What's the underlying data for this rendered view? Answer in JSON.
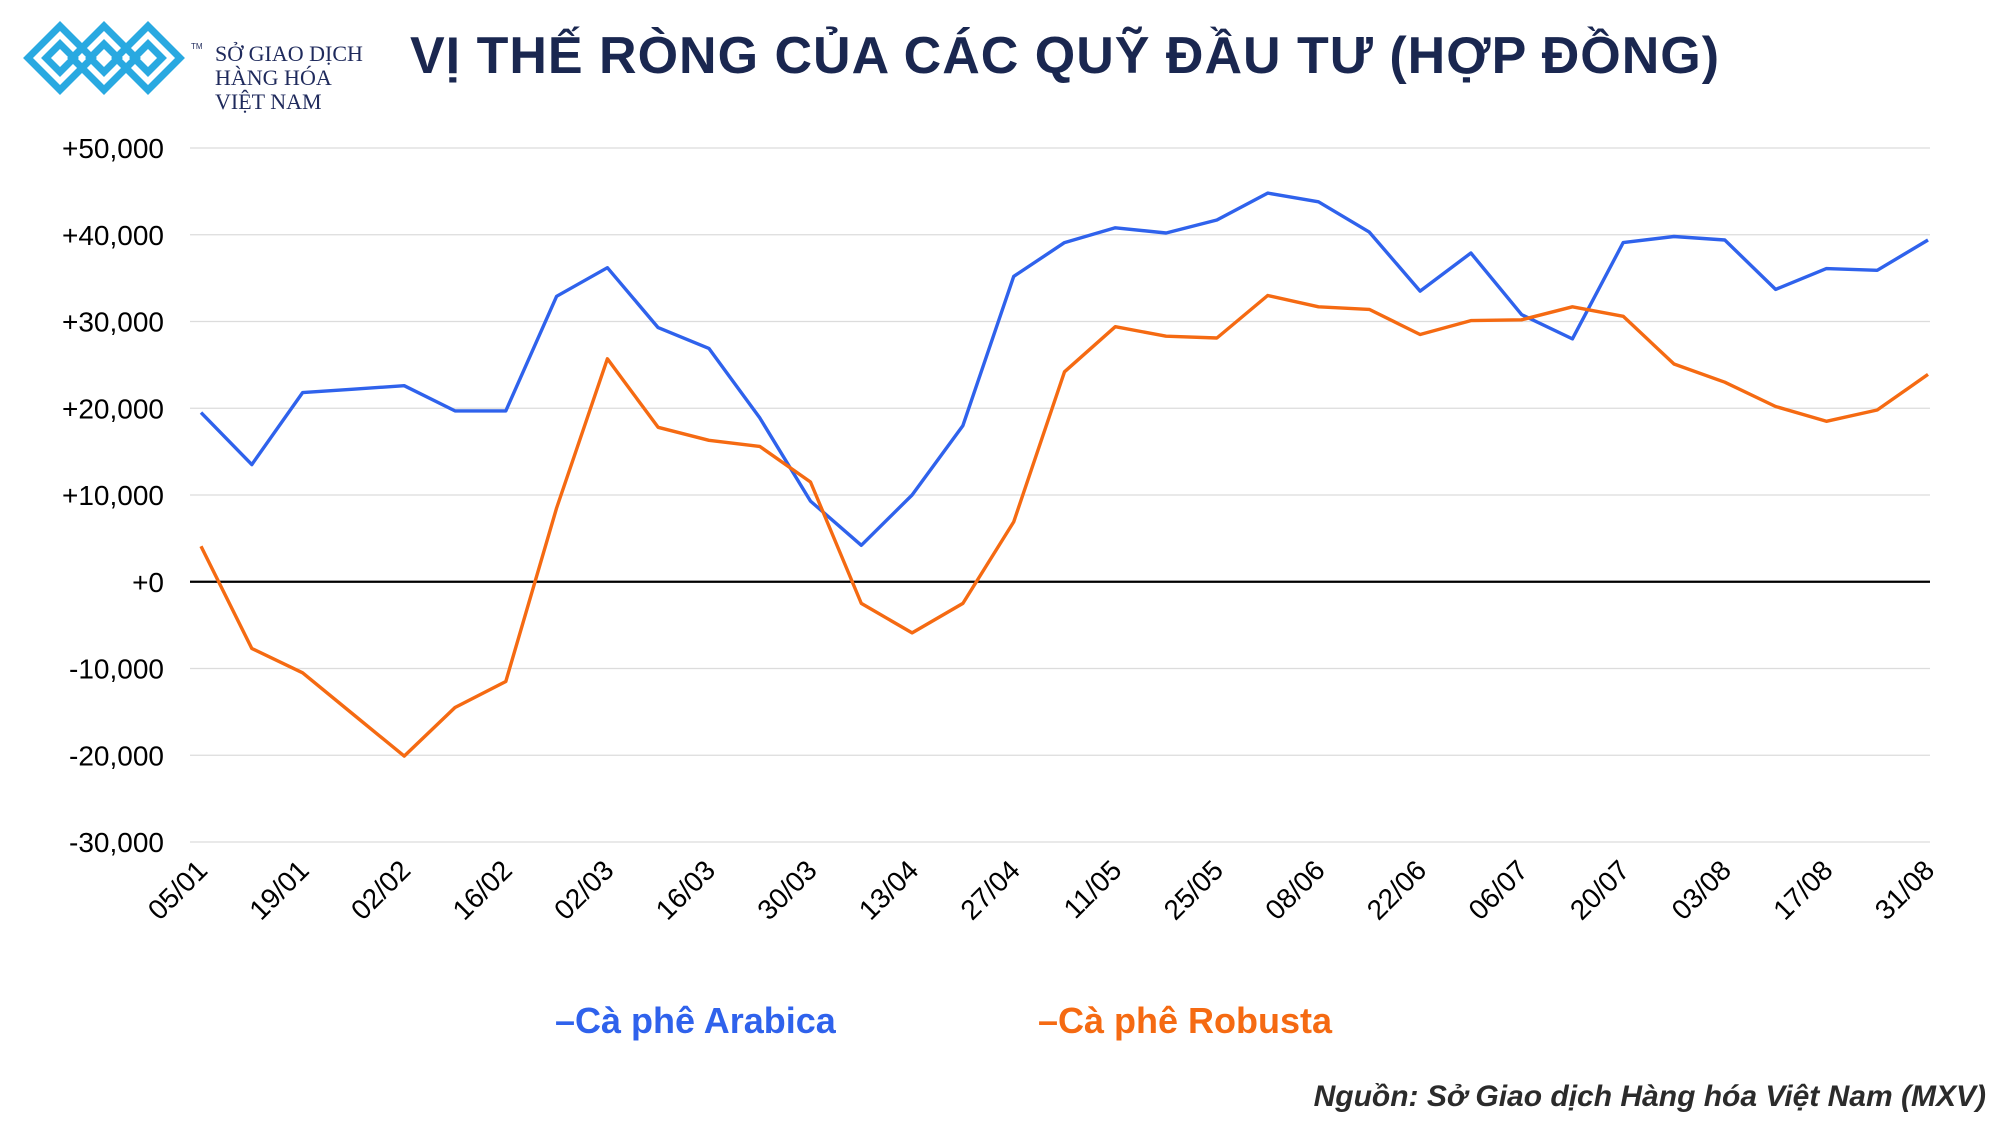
{
  "header": {
    "title": "VỊ THẾ RÒNG CỦA CÁC QUỸ ĐẦU TƯ (HỢP ĐỒNG)",
    "logo_lines": [
      "SỞ GIAO DỊCH",
      "HÀNG HÓA",
      "VIỆT NAM"
    ],
    "logo_tm": "TM"
  },
  "footer": {
    "source": "Nguồn: Sở Giao dịch Hàng hóa Việt Nam (MXV)"
  },
  "colors": {
    "arabica": "#2f62ec",
    "robusta": "#f56a12",
    "title": "#1a2750",
    "logo": "#29a9e1"
  },
  "chart_data": {
    "type": "line",
    "title": "VỊ THẾ RÒNG CỦA CÁC QUỸ ĐẦU TƯ (HỢP ĐỒNG)",
    "ylim": [
      -30000,
      50000
    ],
    "yticks": [
      50000,
      40000,
      30000,
      20000,
      10000,
      0,
      -10000,
      -20000,
      -30000
    ],
    "ytick_labels": [
      "+50,000",
      "+40,000",
      "+30,000",
      "+20,000",
      "+10,000",
      "+0",
      "-10,000",
      "-20,000",
      "-30,000"
    ],
    "x": [
      "05/01",
      "12/01",
      "19/01",
      "26/01",
      "02/02",
      "09/02",
      "16/02",
      "23/02",
      "02/03",
      "09/03",
      "16/03",
      "23/03",
      "30/03",
      "06/04",
      "13/04",
      "20/04",
      "27/04",
      "04/05",
      "11/05",
      "18/05",
      "25/05",
      "01/06",
      "08/06",
      "15/06",
      "22/06",
      "29/06",
      "06/07",
      "13/07",
      "20/07",
      "27/07",
      "03/08",
      "10/08",
      "17/08",
      "24/08",
      "31/08"
    ],
    "xtick_labels": [
      "05/01",
      "19/01",
      "02/02",
      "16/02",
      "02/03",
      "16/03",
      "30/03",
      "13/04",
      "27/04",
      "11/05",
      "25/05",
      "08/06",
      "22/06",
      "06/07",
      "20/07",
      "03/08",
      "17/08",
      "31/08"
    ],
    "grid": true,
    "legend_position": "bottom",
    "series": [
      {
        "name": "Cà phê Arabica",
        "legend_label": "–Cà phê Arabica",
        "color": "#2f62ec",
        "values": [
          19500,
          13500,
          21800,
          22200,
          22600,
          19700,
          19700,
          32900,
          36200,
          29300,
          26900,
          18900,
          9300,
          4200,
          10000,
          18000,
          35200,
          39100,
          40800,
          40200,
          41700,
          44800,
          43800,
          40300,
          33500,
          37900,
          30800,
          28000,
          39100,
          39800,
          39400,
          33700,
          36100,
          35900,
          39400
        ]
      },
      {
        "name": "Cà phê Robusta",
        "legend_label": "–Cà phê Robusta",
        "color": "#f56a12",
        "values": [
          4100,
          -7700,
          -10500,
          -15300,
          -20100,
          -14500,
          -11500,
          8500,
          25700,
          17800,
          16300,
          15600,
          11500,
          -2500,
          -5900,
          -2500,
          6900,
          24200,
          29400,
          28300,
          28100,
          33000,
          31700,
          31400,
          28500,
          30100,
          30200,
          31700,
          30600,
          25100,
          23000,
          20200,
          18500,
          19800,
          23900
        ]
      }
    ]
  }
}
